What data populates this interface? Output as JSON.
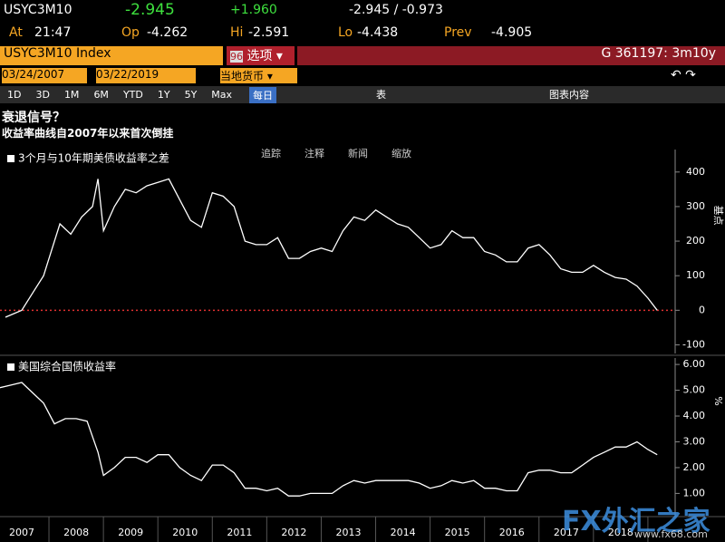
{
  "header": {
    "ticker": "USYC3M10",
    "last": "-2.945",
    "change": "+1.960",
    "range": "-2.945 / -0.973",
    "at_label": "At",
    "time": "21:47",
    "op_label": "Op",
    "op": "-4.262",
    "hi_label": "Hi",
    "hi": "-2.591",
    "lo_label": "Lo",
    "lo": "-4.438",
    "prev_label": "Prev",
    "prev": "-4.905"
  },
  "toolbar": {
    "index": "USYC3M10 Index",
    "menu_num": "96",
    "menu": "选项",
    "security": "G 361197: 3m10y",
    "start_date": "03/24/2007",
    "end_date": "03/22/2019",
    "currency": "当地货币",
    "periods": [
      "1D",
      "3D",
      "1M",
      "6M",
      "YTD",
      "1Y",
      "5Y",
      "Max"
    ],
    "frequency": "每日",
    "table": "表",
    "chart_content": "图表内容"
  },
  "title": "衰退信号？",
  "subtitle": "收益率曲线自2007年以来首次倒挂",
  "chart_tools": [
    "追踪",
    "注释",
    "新闻",
    "缩放"
  ],
  "watermark": {
    "brand": "FX外汇之家",
    "url": "www.fx68.com"
  },
  "chart_data": [
    {
      "type": "line",
      "y_label": "基点",
      "xlim": [
        2007.1,
        2019.5
      ],
      "ylim": [
        -125,
        465
      ],
      "yticks": [
        -100,
        0,
        100,
        200,
        300,
        400
      ],
      "hline": 0,
      "hline_color": "#e03030",
      "x": [
        2007.2,
        2007.5,
        2007.7,
        2007.9,
        2008.0,
        2008.2,
        2008.4,
        2008.6,
        2008.8,
        2008.9,
        2009.0,
        2009.2,
        2009.4,
        2009.6,
        2009.8,
        2010.0,
        2010.2,
        2010.4,
        2010.6,
        2010.8,
        2011.0,
        2011.2,
        2011.4,
        2011.6,
        2011.8,
        2012.0,
        2012.2,
        2012.4,
        2012.6,
        2012.8,
        2013.0,
        2013.2,
        2013.4,
        2013.6,
        2013.8,
        2014.0,
        2014.2,
        2014.4,
        2014.6,
        2014.8,
        2015.0,
        2015.2,
        2015.4,
        2015.6,
        2015.8,
        2016.0,
        2016.2,
        2016.4,
        2016.6,
        2016.8,
        2017.0,
        2017.2,
        2017.4,
        2017.6,
        2017.8,
        2018.0,
        2018.2,
        2018.4,
        2018.6,
        2018.8,
        2019.0,
        2019.17
      ],
      "series": [
        {
          "name": "3个月与10年期美债收益率之差",
          "color": "#ffffff",
          "values": [
            -20,
            0,
            50,
            100,
            150,
            250,
            220,
            270,
            300,
            380,
            230,
            300,
            350,
            340,
            360,
            370,
            380,
            320,
            260,
            240,
            340,
            330,
            300,
            200,
            190,
            190,
            210,
            150,
            150,
            170,
            180,
            170,
            230,
            270,
            260,
            290,
            270,
            250,
            240,
            210,
            180,
            190,
            230,
            210,
            210,
            170,
            160,
            140,
            140,
            180,
            190,
            160,
            120,
            110,
            110,
            130,
            110,
            95,
            90,
            70,
            35,
            0
          ]
        }
      ]
    },
    {
      "type": "line",
      "y_label": "%",
      "xlim": [
        2007.1,
        2019.5
      ],
      "ylim": [
        0.1,
        6.25
      ],
      "yticks": [
        {
          "value": 1,
          "label": "1.00"
        },
        {
          "value": 2,
          "label": "2.00"
        },
        {
          "value": 3,
          "label": "3.00"
        },
        {
          "value": 4,
          "label": "4.00"
        },
        {
          "value": 5,
          "label": "5.00"
        },
        {
          "value": 6,
          "label": "6.00"
        }
      ],
      "xticks": [
        {
          "value": 2007.5,
          "label": "2007"
        },
        {
          "value": 2008.5,
          "label": "2008"
        },
        {
          "value": 2009.5,
          "label": "2009"
        },
        {
          "value": 2010.5,
          "label": "2010"
        },
        {
          "value": 2011.5,
          "label": "2011"
        },
        {
          "value": 2012.5,
          "label": "2012"
        },
        {
          "value": 2013.5,
          "label": "2013"
        },
        {
          "value": 2014.5,
          "label": "2014"
        },
        {
          "value": 2015.5,
          "label": "2015"
        },
        {
          "value": 2016.5,
          "label": "2016"
        },
        {
          "value": 2017.5,
          "label": "2017"
        },
        {
          "value": 2018.5,
          "label": "2018"
        }
      ],
      "x": [
        2007.1,
        2007.3,
        2007.5,
        2007.7,
        2007.9,
        2008.1,
        2008.3,
        2008.5,
        2008.7,
        2008.9,
        2009.0,
        2009.2,
        2009.4,
        2009.6,
        2009.8,
        2010.0,
        2010.2,
        2010.4,
        2010.6,
        2010.8,
        2011.0,
        2011.2,
        2011.4,
        2011.6,
        2011.8,
        2012.0,
        2012.2,
        2012.4,
        2012.6,
        2012.8,
        2013.0,
        2013.2,
        2013.4,
        2013.6,
        2013.8,
        2014.0,
        2014.2,
        2014.4,
        2014.6,
        2014.8,
        2015.0,
        2015.2,
        2015.4,
        2015.6,
        2015.8,
        2016.0,
        2016.2,
        2016.4,
        2016.6,
        2016.8,
        2017.0,
        2017.2,
        2017.4,
        2017.6,
        2017.8,
        2018.0,
        2018.2,
        2018.4,
        2018.6,
        2018.8,
        2019.0,
        2019.17
      ],
      "series": [
        {
          "name": "美国综合国债收益率",
          "color": "#ffffff",
          "values": [
            5.1,
            5.2,
            5.3,
            4.9,
            4.5,
            3.7,
            3.9,
            3.9,
            3.8,
            2.6,
            1.7,
            2.0,
            2.4,
            2.4,
            2.2,
            2.5,
            2.5,
            2.0,
            1.7,
            1.5,
            2.1,
            2.1,
            1.8,
            1.2,
            1.2,
            1.1,
            1.2,
            0.9,
            0.9,
            1.0,
            1.0,
            1.0,
            1.3,
            1.5,
            1.4,
            1.5,
            1.5,
            1.5,
            1.5,
            1.4,
            1.2,
            1.3,
            1.5,
            1.4,
            1.5,
            1.2,
            1.2,
            1.1,
            1.1,
            1.8,
            1.9,
            1.9,
            1.8,
            1.8,
            2.1,
            2.4,
            2.6,
            2.8,
            2.8,
            3.0,
            2.7,
            2.5
          ]
        }
      ]
    }
  ]
}
